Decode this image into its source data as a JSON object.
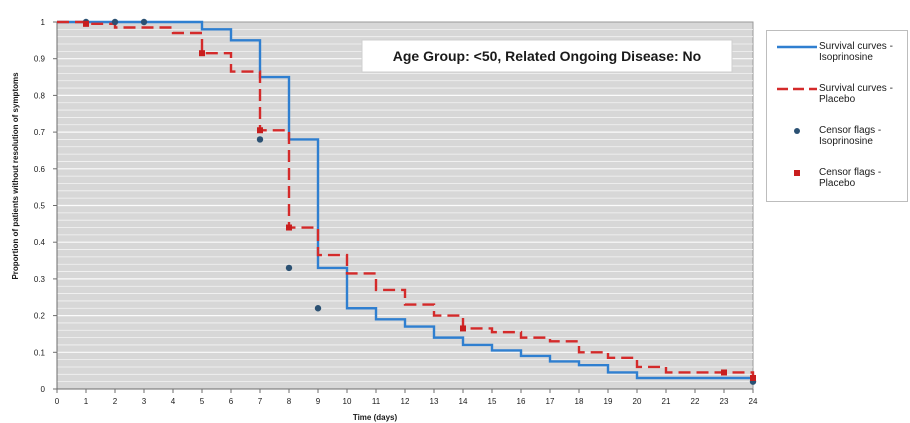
{
  "chart_data": {
    "type": "line",
    "title": "Age Group: <50, Related Ongoing Disease: No",
    "xlabel": "Time (days)",
    "ylabel": "Proportion of patients without resolution of symptoms",
    "xlim": [
      0,
      24
    ],
    "ylim": [
      0,
      1
    ],
    "x_ticks": [
      "0",
      "1",
      "2",
      "3",
      "4",
      "5",
      "6",
      "7",
      "8",
      "9",
      "10",
      "11",
      "12",
      "13",
      "14",
      "15",
      "16",
      "17",
      "18",
      "19",
      "20",
      "21",
      "22",
      "23",
      "24"
    ],
    "y_ticks": [
      "0",
      "0.1",
      "0.2",
      "0.3",
      "0.4",
      "0.5",
      "0.6",
      "0.7",
      "0.8",
      "0.9",
      "1"
    ],
    "y_tick_values": [
      0,
      0.1,
      0.2,
      0.3,
      0.4,
      0.5,
      0.6,
      0.7,
      0.8,
      0.9,
      1
    ],
    "grid": true,
    "legend_position": "right",
    "series": [
      {
        "name": "Survival curves - Isoprinosine",
        "style": "solid-step",
        "color": "#2f7fd0",
        "x": [
          0,
          5,
          6,
          7,
          8,
          9,
          10,
          11,
          12,
          13,
          14,
          15,
          16,
          17,
          18,
          19,
          20,
          24
        ],
        "y": [
          1,
          0.98,
          0.95,
          0.85,
          0.68,
          0.33,
          0.22,
          0.19,
          0.17,
          0.14,
          0.12,
          0.105,
          0.09,
          0.075,
          0.065,
          0.045,
          0.03,
          0.02
        ]
      },
      {
        "name": "Survival curves - Placebo",
        "style": "dashed-step",
        "color": "#d42a2a",
        "x": [
          0,
          1,
          2,
          4,
          5,
          6,
          7,
          8,
          9,
          10,
          11,
          12,
          13,
          14,
          15,
          16,
          17,
          18,
          19,
          20,
          21,
          24
        ],
        "y": [
          1,
          0.995,
          0.985,
          0.97,
          0.915,
          0.865,
          0.705,
          0.44,
          0.365,
          0.315,
          0.27,
          0.23,
          0.2,
          0.165,
          0.155,
          0.14,
          0.13,
          0.1,
          0.085,
          0.06,
          0.045,
          0.03
        ]
      },
      {
        "name": "Censor flags - Isoprinosine",
        "style": "circle",
        "color": "#2b5173",
        "points": [
          [
            1,
            1
          ],
          [
            2,
            1
          ],
          [
            3,
            1
          ],
          [
            7,
            0.68
          ],
          [
            8,
            0.33
          ],
          [
            9,
            0.22
          ],
          [
            24,
            0.02
          ]
        ]
      },
      {
        "name": "Censor flags - Placebo",
        "style": "square",
        "color": "#c91e1e",
        "points": [
          [
            1,
            0.995
          ],
          [
            5,
            0.915
          ],
          [
            7,
            0.705
          ],
          [
            8,
            0.44
          ],
          [
            14,
            0.165
          ],
          [
            23,
            0.045
          ],
          [
            24,
            0.03
          ]
        ]
      }
    ],
    "legend": [
      {
        "line1": "Survival curves -",
        "line2": "Isoprinosine",
        "key": "solid",
        "color": "#2f7fd0"
      },
      {
        "line1": "Survival curves -",
        "line2": "Placebo",
        "key": "dashed",
        "color": "#d42a2a"
      },
      {
        "line1": "Censor flags -",
        "line2": "Isoprinosine",
        "key": "circle",
        "color": "#2b5173"
      },
      {
        "line1": "Censor flags -",
        "line2": "Placebo",
        "key": "square",
        "color": "#c91e1e"
      }
    ],
    "colors": {
      "plot_background": "#d7d7d7",
      "gridline": "#f4f4f4",
      "axis": "#6e6e6e"
    }
  }
}
